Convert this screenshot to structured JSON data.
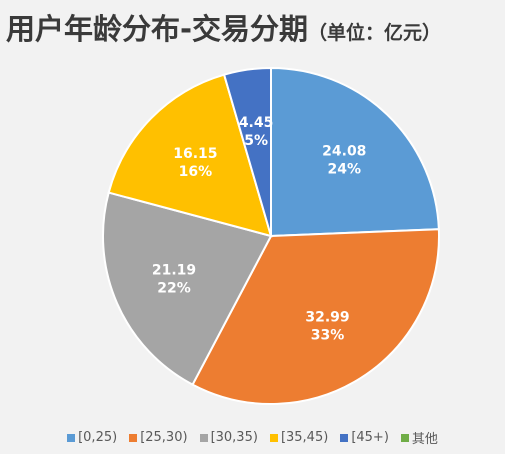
{
  "title": "用户年龄分布-交易分期",
  "unit": "（单位：亿元）",
  "colors": {
    "background": "#f2f2f2",
    "slice_border": "#ffffff",
    "label_text": "#ffffff"
  },
  "chart_data": {
    "type": "pie",
    "title": "用户年龄分布-交易分期",
    "start_angle_deg": 0,
    "direction": "clockwise",
    "slices": [
      {
        "label": "[0,25)",
        "value": 24.08,
        "percent": "24%",
        "color": "#5b9bd5"
      },
      {
        "label": "[25,30)",
        "value": 32.99,
        "percent": "33%",
        "color": "#ed7d31"
      },
      {
        "label": "[30,35)",
        "value": 21.19,
        "percent": "22%",
        "color": "#a5a5a5"
      },
      {
        "label": "[35,45)",
        "value": 16.15,
        "percent": "16%",
        "color": "#ffc000"
      },
      {
        "label": "[45+)",
        "value": 4.45,
        "percent": "5%",
        "color": "#4472c4"
      },
      {
        "label": "其他",
        "value": 0,
        "percent": "0%",
        "color": "#70ad47"
      }
    ],
    "legend_position": "bottom"
  }
}
